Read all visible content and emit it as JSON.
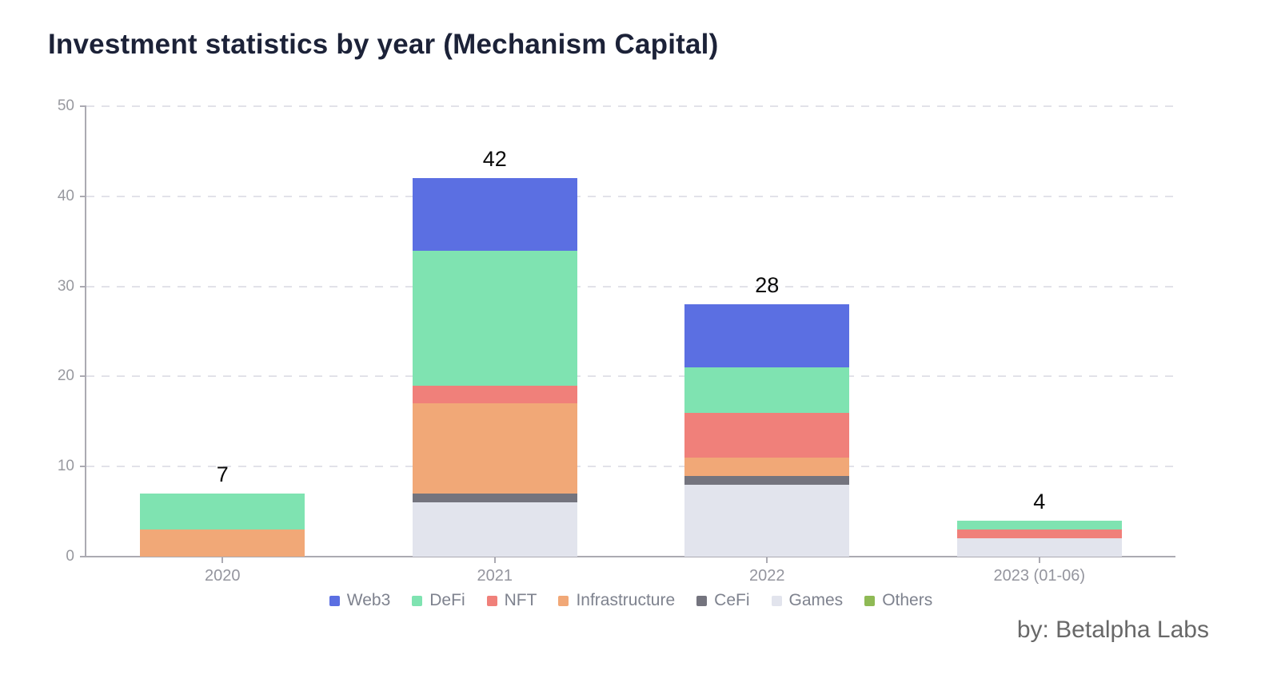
{
  "title": "Investment statistics by year (Mechanism Capital)",
  "byline": "by:  Betalpha Labs",
  "chart_data": {
    "type": "bar",
    "stacked": true,
    "title": "Investment statistics by year (Mechanism Capital)",
    "categories": [
      "2020",
      "2021",
      "2022",
      "2023 (01-06)"
    ],
    "series": [
      {
        "name": "Web3",
        "color": "#5b6fe2",
        "values": [
          0,
          8,
          7,
          0
        ]
      },
      {
        "name": "DeFi",
        "color": "#7fe3b1",
        "values": [
          4,
          15,
          5,
          1
        ]
      },
      {
        "name": "NFT",
        "color": "#f0807a",
        "values": [
          0,
          2,
          5,
          1
        ]
      },
      {
        "name": "Infrastructure",
        "color": "#f1a877",
        "values": [
          3,
          10,
          2,
          0
        ]
      },
      {
        "name": "CeFi",
        "color": "#74747e",
        "values": [
          0,
          1,
          1,
          0
        ]
      },
      {
        "name": "Games",
        "color": "#e2e4ed",
        "values": [
          0,
          6,
          8,
          2
        ]
      },
      {
        "name": "Others",
        "color": "#8fba55",
        "values": [
          0,
          0,
          0,
          0
        ]
      }
    ],
    "totals": [
      7,
      42,
      28,
      4
    ],
    "stack_order_bottom_to_top": [
      "Others",
      "Games",
      "CeFi",
      "Infrastructure",
      "NFT",
      "DeFi",
      "Web3"
    ],
    "ylim": [
      0,
      50
    ],
    "yticks": [
      0,
      10,
      20,
      30,
      40,
      50
    ],
    "xlabel": "",
    "ylabel": "",
    "grid": "horizontal-dashed",
    "legend_position": "bottom",
    "legend": [
      "Web3",
      "DeFi",
      "NFT",
      "Infrastructure",
      "CeFi",
      "Games",
      "Others"
    ]
  },
  "colors": {
    "background": "#ffffff",
    "title_text": "#1c2238",
    "axis": "#abaab2",
    "gridline": "#e2e2e9",
    "tick_label": "#98999f",
    "x_label": "#94959e",
    "legend_text": "#7e828e",
    "value_label": "#0a0a0a",
    "byline_text": "#686868"
  }
}
